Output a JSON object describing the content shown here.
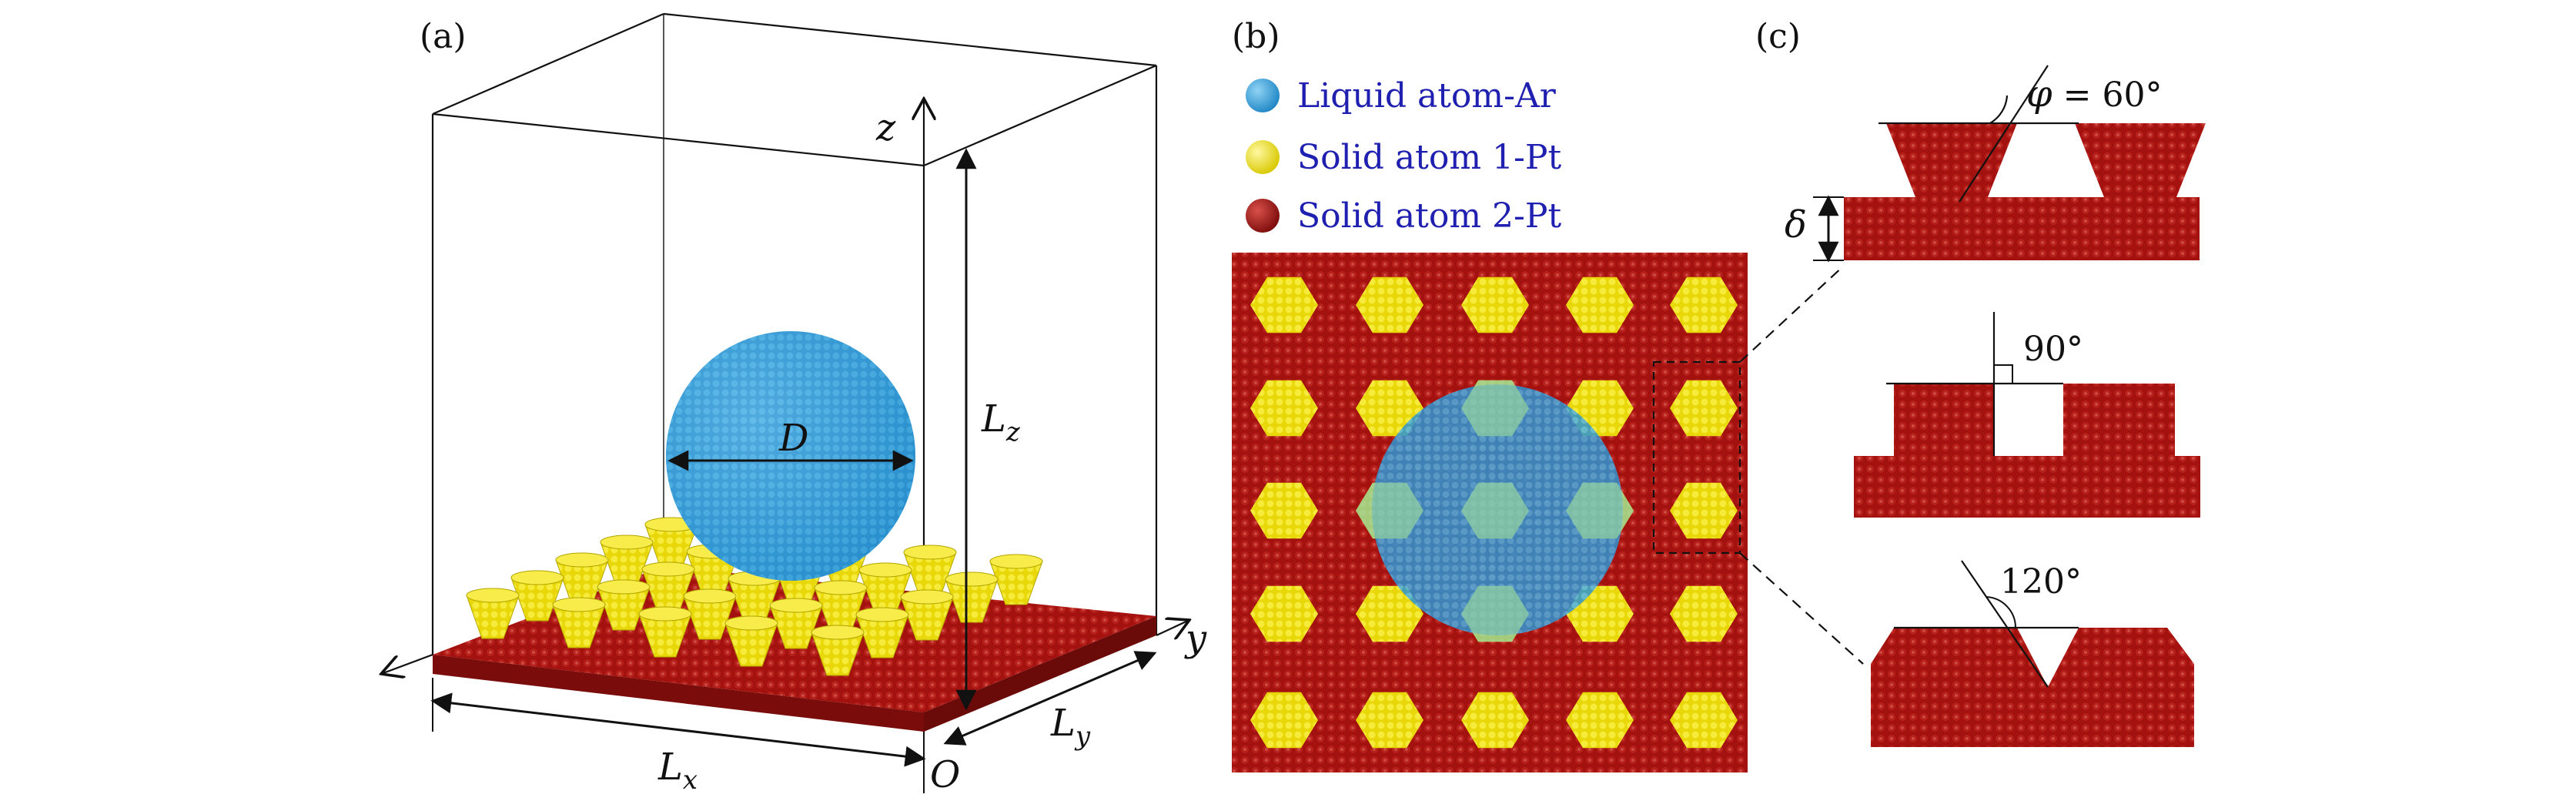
{
  "panels": {
    "a": {
      "label": "(a)"
    },
    "b": {
      "label": "(b)"
    },
    "c": {
      "label": "(c)"
    }
  },
  "axes": {
    "z": "z",
    "y": "y",
    "origin": "O"
  },
  "dims": {
    "droplet_diameter": "D",
    "lz": {
      "base": "L",
      "sub": "z"
    },
    "lx": {
      "base": "L",
      "sub": "x"
    },
    "ly": {
      "base": "L",
      "sub": "y"
    }
  },
  "legend": [
    {
      "label": "Liquid atom-Ar",
      "color": "#3aa6dc"
    },
    {
      "label": "Solid atom 1-Pt",
      "color": "#f2e414"
    },
    {
      "label": "Solid atom 2-Pt",
      "color": "#a3120f"
    }
  ],
  "profiles": {
    "angle_60": {
      "symbol": "φ",
      "value": " = 60°"
    },
    "delta": "δ",
    "angle_90": "90°",
    "angle_120": "120°"
  },
  "colors": {
    "liquid": "#3aa6dc",
    "solid1": "#f2e414",
    "solid2": "#a3120f",
    "line": "#111111"
  }
}
